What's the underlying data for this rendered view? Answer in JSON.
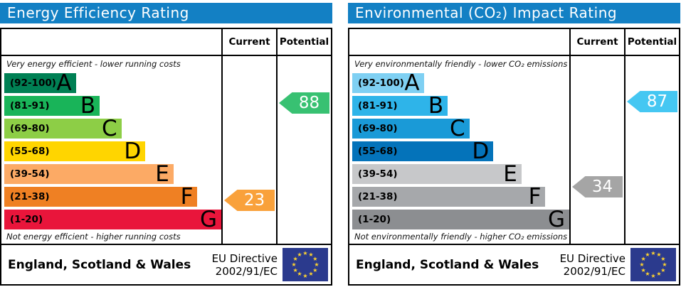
{
  "accent_colors": {
    "header_blue": "#1380c4",
    "eu_flag_blue": "#2b3a8d",
    "eu_star_yellow": "#ffd42e"
  },
  "panels": [
    {
      "title": "Energy Efficiency Rating",
      "columns": {
        "current": "Current",
        "potential": "Potential"
      },
      "top_note": "Very energy efficient - lower running costs",
      "bottom_note": "Not energy efficient - higher running costs",
      "bands": [
        {
          "range": "(92-100)",
          "letter": "A",
          "color": "#008054"
        },
        {
          "range": "(81-91)",
          "letter": "B",
          "color": "#19b459"
        },
        {
          "range": "(69-80)",
          "letter": "C",
          "color": "#8dce46"
        },
        {
          "range": "(55-68)",
          "letter": "D",
          "color": "#ffd500"
        },
        {
          "range": "(39-54)",
          "letter": "E",
          "color": "#fcaa65"
        },
        {
          "range": "(21-38)",
          "letter": "F",
          "color": "#ef8023"
        },
        {
          "range": "(1-20)",
          "letter": "G",
          "color": "#e9153b"
        }
      ],
      "current": {
        "value": "23",
        "color": "#f9a13b",
        "band": "F"
      },
      "potential": {
        "value": "88",
        "color": "#38c172",
        "band": "B"
      },
      "footer": {
        "region": "England, Scotland & Wales",
        "directive_line1": "EU Directive",
        "directive_line2": "2002/91/EC"
      }
    },
    {
      "title": "Environmental (CO₂) Impact Rating",
      "columns": {
        "current": "Current",
        "potential": "Potential"
      },
      "top_note": "Very environmentally friendly - lower CO₂ emissions",
      "bottom_note": "Not environmentally friendly - higher CO₂ emissions",
      "bands": [
        {
          "range": "(92-100)",
          "letter": "A",
          "color": "#7fd0f3"
        },
        {
          "range": "(81-91)",
          "letter": "B",
          "color": "#2eb4e9"
        },
        {
          "range": "(69-80)",
          "letter": "C",
          "color": "#1a9ad7"
        },
        {
          "range": "(55-68)",
          "letter": "D",
          "color": "#0473ba"
        },
        {
          "range": "(39-54)",
          "letter": "E",
          "color": "#c7c8ca"
        },
        {
          "range": "(21-38)",
          "letter": "F",
          "color": "#a6a8ab"
        },
        {
          "range": "(1-20)",
          "letter": "G",
          "color": "#8c8e91"
        }
      ],
      "current": {
        "value": "34",
        "color": "#a5a5a5",
        "band": "F"
      },
      "potential": {
        "value": "87",
        "color": "#45c7f2",
        "band": "B"
      },
      "footer": {
        "region": "England, Scotland & Wales",
        "directive_line1": "EU Directive",
        "directive_line2": "2002/91/EC"
      }
    }
  ],
  "chart_data": [
    {
      "type": "bar",
      "title": "Energy Efficiency Rating",
      "orientation": "horizontal",
      "categories": [
        "A",
        "B",
        "C",
        "D",
        "E",
        "F",
        "G"
      ],
      "band_ranges": [
        "92-100",
        "81-91",
        "69-80",
        "55-68",
        "39-54",
        "21-38",
        "1-20"
      ],
      "bar_width_pct": [
        33,
        44,
        54,
        65,
        78,
        89,
        100
      ],
      "band_colors": [
        "#008054",
        "#19b459",
        "#8dce46",
        "#ffd500",
        "#fcaa65",
        "#ef8023",
        "#e9153b"
      ],
      "current": 23,
      "current_band": "F",
      "potential": 88,
      "potential_band": "B",
      "scale_range": [
        1,
        100
      ],
      "top_annotation": "Very energy efficient - lower running costs",
      "bottom_annotation": "Not energy efficient - higher running costs",
      "footer_text": "England, Scotland & Wales | EU Directive 2002/91/EC"
    },
    {
      "type": "bar",
      "title": "Environmental (CO₂) Impact Rating",
      "orientation": "horizontal",
      "categories": [
        "A",
        "B",
        "C",
        "D",
        "E",
        "F",
        "G"
      ],
      "band_ranges": [
        "92-100",
        "81-91",
        "69-80",
        "55-68",
        "39-54",
        "21-38",
        "1-20"
      ],
      "bar_width_pct": [
        33,
        44,
        54,
        65,
        78,
        89,
        100
      ],
      "band_colors": [
        "#7fd0f3",
        "#2eb4e9",
        "#1a9ad7",
        "#0473ba",
        "#c7c8ca",
        "#a6a8ab",
        "#8c8e91"
      ],
      "current": 34,
      "current_band": "F",
      "potential": 87,
      "potential_band": "B",
      "scale_range": [
        1,
        100
      ],
      "top_annotation": "Very environmentally friendly - lower CO₂ emissions",
      "bottom_annotation": "Not environmentally friendly - higher CO₂ emissions",
      "footer_text": "England, Scotland & Wales | EU Directive 2002/91/EC"
    }
  ]
}
